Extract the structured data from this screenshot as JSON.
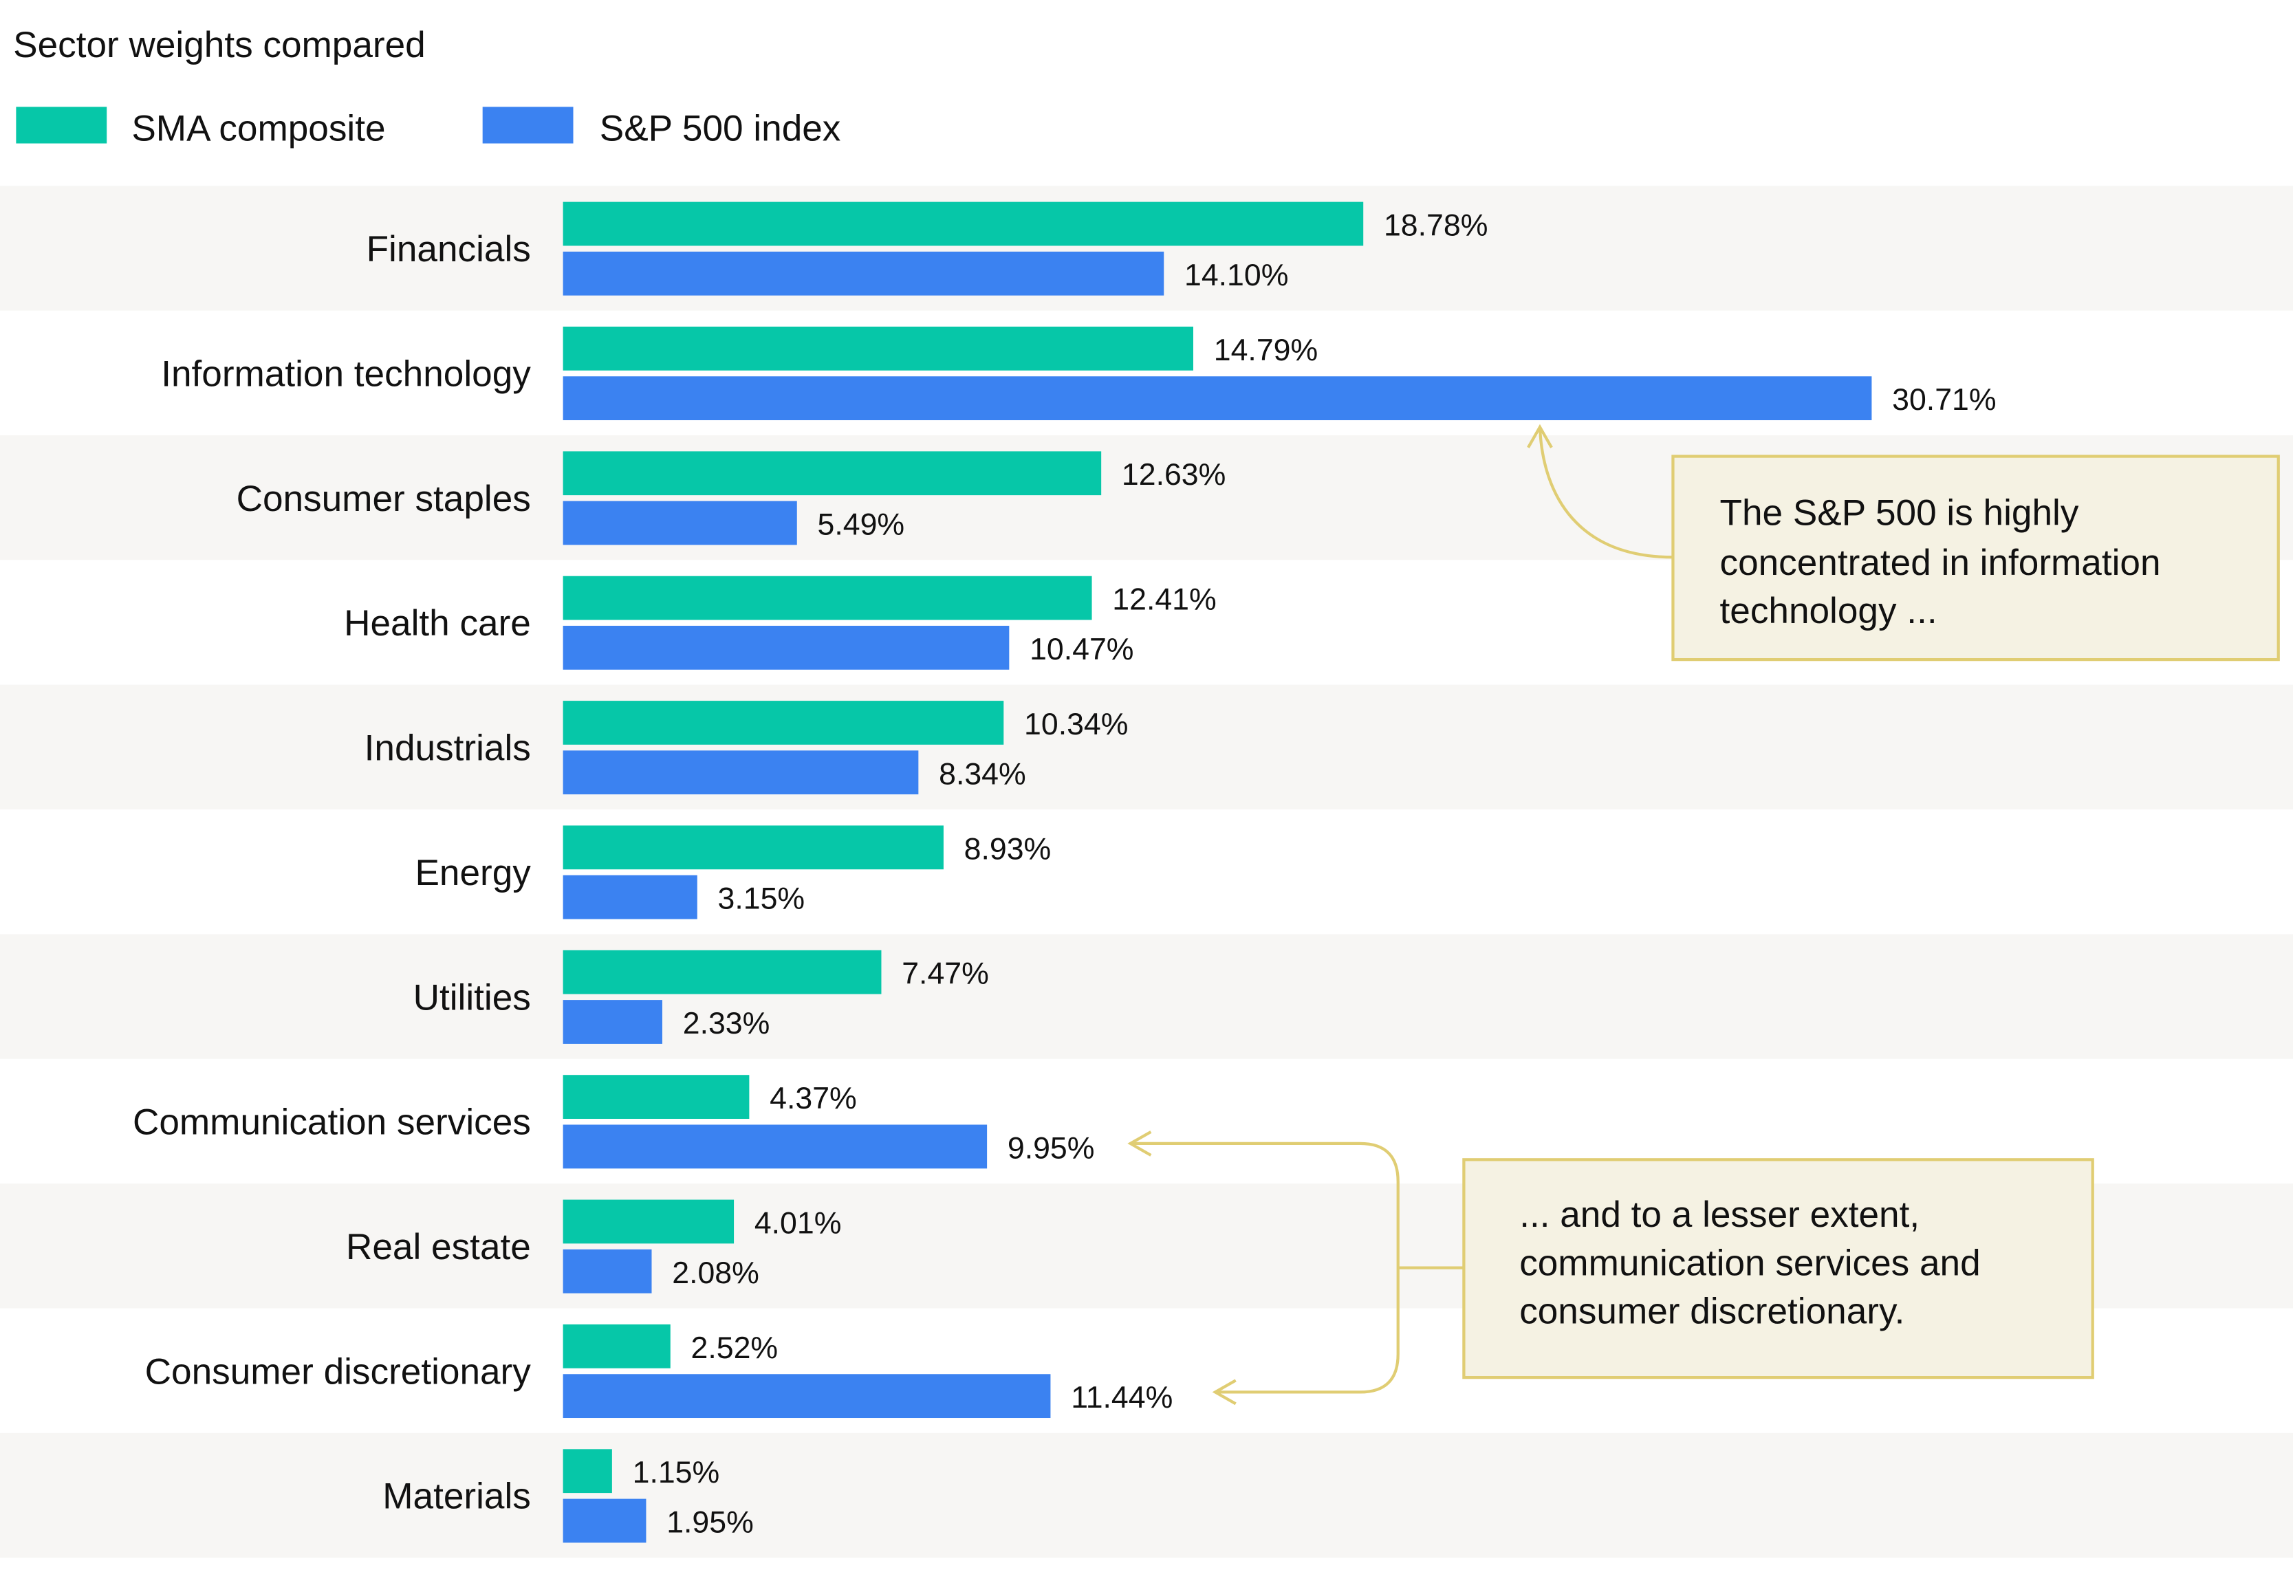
{
  "chart_data": {
    "type": "bar",
    "orientation": "horizontal",
    "title": "Sector weights compared",
    "unit": "%",
    "categories": [
      "Financials",
      "Information technology",
      "Consumer staples",
      "Health care",
      "Industrials",
      "Energy",
      "Utilities",
      "Communication services",
      "Real estate",
      "Consumer discretionary",
      "Materials"
    ],
    "series": [
      {
        "name": "SMA composite",
        "color": "#06c7a8",
        "values": [
          18.78,
          14.79,
          12.63,
          12.41,
          10.34,
          8.93,
          7.47,
          4.37,
          4.01,
          2.52,
          1.15
        ]
      },
      {
        "name": "S&P 500 index",
        "color": "#3b82f1",
        "values": [
          14.1,
          30.71,
          5.49,
          10.47,
          8.34,
          3.15,
          2.33,
          9.95,
          2.08,
          11.44,
          1.95
        ]
      }
    ],
    "value_labels": [
      [
        "18.78%",
        "14.79%",
        "12.63%",
        "12.41%",
        "10.34%",
        "8.93%",
        "7.47%",
        "4.37%",
        "4.01%",
        "2.52%",
        "1.15%"
      ],
      [
        "14.10%",
        "30.71%",
        "5.49%",
        "10.47%",
        "8.34%",
        "3.15%",
        "2.33%",
        "9.95%",
        "2.08%",
        "11.44%",
        "1.95%"
      ]
    ],
    "legend": "top-left",
    "grid": false,
    "row_shading_color": "#f7f6f4",
    "annotations": [
      {
        "lines": [
          "The S&P 500 is highly",
          "concentrated in information",
          "technology ..."
        ]
      },
      {
        "lines": [
          "... and to a lesser extent,",
          "communication services and",
          "consumer discretionary."
        ]
      }
    ],
    "annotation_fill": "#f5f2e3",
    "annotation_stroke": "#e0cd73"
  }
}
